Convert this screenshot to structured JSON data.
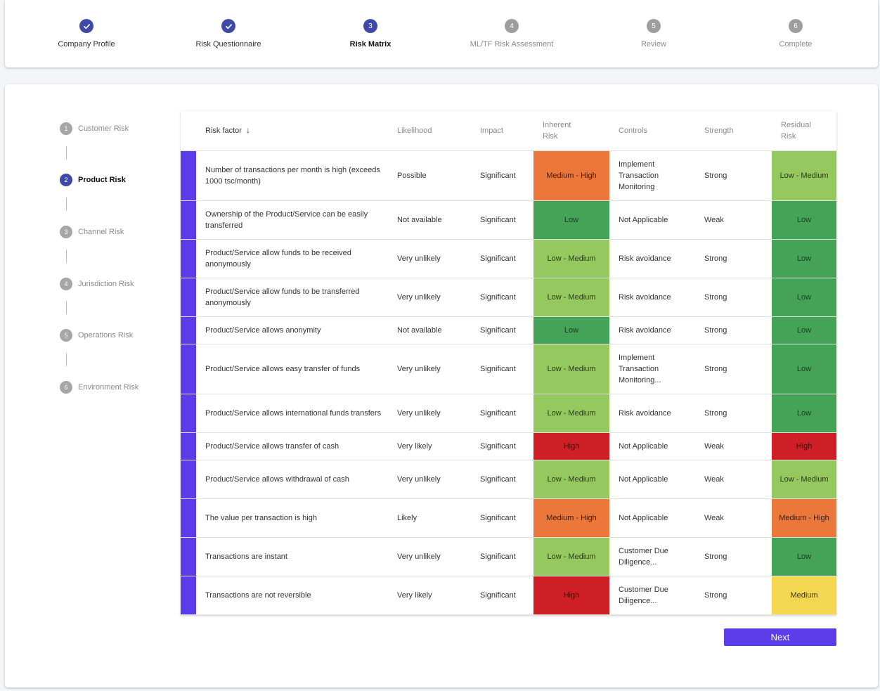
{
  "stepper": {
    "steps": [
      {
        "label": "Company Profile",
        "num": "1",
        "status": "done"
      },
      {
        "label": "Risk Questionnaire",
        "num": "2",
        "status": "done"
      },
      {
        "label": "Risk Matrix",
        "num": "3",
        "status": "active"
      },
      {
        "label": "ML/TF Risk Assessment",
        "num": "4",
        "status": "pending"
      },
      {
        "label": "Review",
        "num": "5",
        "status": "pending"
      },
      {
        "label": "Complete",
        "num": "6",
        "status": "pending"
      }
    ]
  },
  "sidebar": {
    "items": [
      {
        "num": "1",
        "label": "Customer Risk",
        "status": "pending"
      },
      {
        "num": "2",
        "label": "Product Risk",
        "status": "active"
      },
      {
        "num": "3",
        "label": "Channel Risk",
        "status": "pending"
      },
      {
        "num": "4",
        "label": "Jurisdiction Risk",
        "status": "pending"
      },
      {
        "num": "5",
        "label": "Operations Risk",
        "status": "pending"
      },
      {
        "num": "6",
        "label": "Environment Risk",
        "status": "pending"
      }
    ]
  },
  "table": {
    "headers": {
      "risk_factor": "Risk factor",
      "likelihood": "Likelihood",
      "impact": "Impact",
      "inherent_1": "Inherent",
      "inherent_2": "Risk",
      "controls": "Controls",
      "strength": "Strength",
      "residual_1": "Residual",
      "residual_2": "Risk"
    },
    "sort_icon": "arrow-down-icon",
    "rows": [
      {
        "factor": "Number of transactions per month is high (exceeds 1000 tsc/month)",
        "likelihood": "Possible",
        "impact": "Significant",
        "inherent": "Medium - High",
        "controls": "Implement Transaction Monitoring",
        "strength": "Strong",
        "residual": "Low - Medium"
      },
      {
        "factor": "Ownership of the Product/Service can be easily transferred",
        "likelihood": "Not available",
        "impact": "Significant",
        "inherent": "Low",
        "controls": "Not Applicable",
        "strength": "Weak",
        "residual": "Low"
      },
      {
        "factor": "Product/Service allow funds to be received anonymously",
        "likelihood": "Very unlikely",
        "impact": "Significant",
        "inherent": "Low - Medium",
        "controls": "Risk avoidance",
        "strength": "Strong",
        "residual": "Low"
      },
      {
        "factor": "Product/Service allow funds to be transferred anonymously",
        "likelihood": "Very unlikely",
        "impact": "Significant",
        "inherent": "Low - Medium",
        "controls": "Risk avoidance",
        "strength": "Strong",
        "residual": "Low"
      },
      {
        "factor": "Product/Service allows anonymity",
        "likelihood": "Not available",
        "impact": "Significant",
        "inherent": "Low",
        "controls": "Risk avoidance",
        "strength": "Strong",
        "residual": "Low"
      },
      {
        "factor": "Product/Service allows easy transfer of funds",
        "likelihood": "Very unlikely",
        "impact": "Significant",
        "inherent": "Low - Medium",
        "controls": "Implement Transaction Monitoring...",
        "strength": "Strong",
        "residual": "Low"
      },
      {
        "factor": "Product/Service allows international funds transfers",
        "likelihood": "Very unlikely",
        "impact": "Significant",
        "inherent": "Low - Medium",
        "controls": "Risk avoidance",
        "strength": "Strong",
        "residual": "Low"
      },
      {
        "factor": "Product/Service allows transfer of cash",
        "likelihood": "Very likely",
        "impact": "Significant",
        "inherent": "High",
        "controls": "Not Applicable",
        "strength": "Weak",
        "residual": "High"
      },
      {
        "factor": "Product/Service allows withdrawal of cash",
        "likelihood": "Very unlikely",
        "impact": "Significant",
        "inherent": "Low - Medium",
        "controls": "Not Applicable",
        "strength": "Weak",
        "residual": "Low - Medium"
      },
      {
        "factor": "The value per transaction is high",
        "likelihood": "Likely",
        "impact": "Significant",
        "inherent": "Medium - High",
        "controls": "Not Applicable",
        "strength": "Weak",
        "residual": "Medium - High"
      },
      {
        "factor": "Transactions are instant",
        "likelihood": "Very unlikely",
        "impact": "Significant",
        "inherent": "Low - Medium",
        "controls": "Customer Due Diligence...",
        "strength": "Strong",
        "residual": "Low"
      },
      {
        "factor": "Transactions are not reversible",
        "likelihood": "Very likely",
        "impact": "Significant",
        "inherent": "High",
        "controls": "Customer Due Diligence...",
        "strength": "Strong",
        "residual": "Medium"
      }
    ]
  },
  "colors": {
    "primary": "#3f4aa8",
    "accent": "#5a3de8",
    "low": "#45a357",
    "low_medium": "#95c85e",
    "medium": "#f4d750",
    "medium_high": "#ec773a",
    "high": "#d02027"
  },
  "next_button": {
    "label": "Next"
  }
}
